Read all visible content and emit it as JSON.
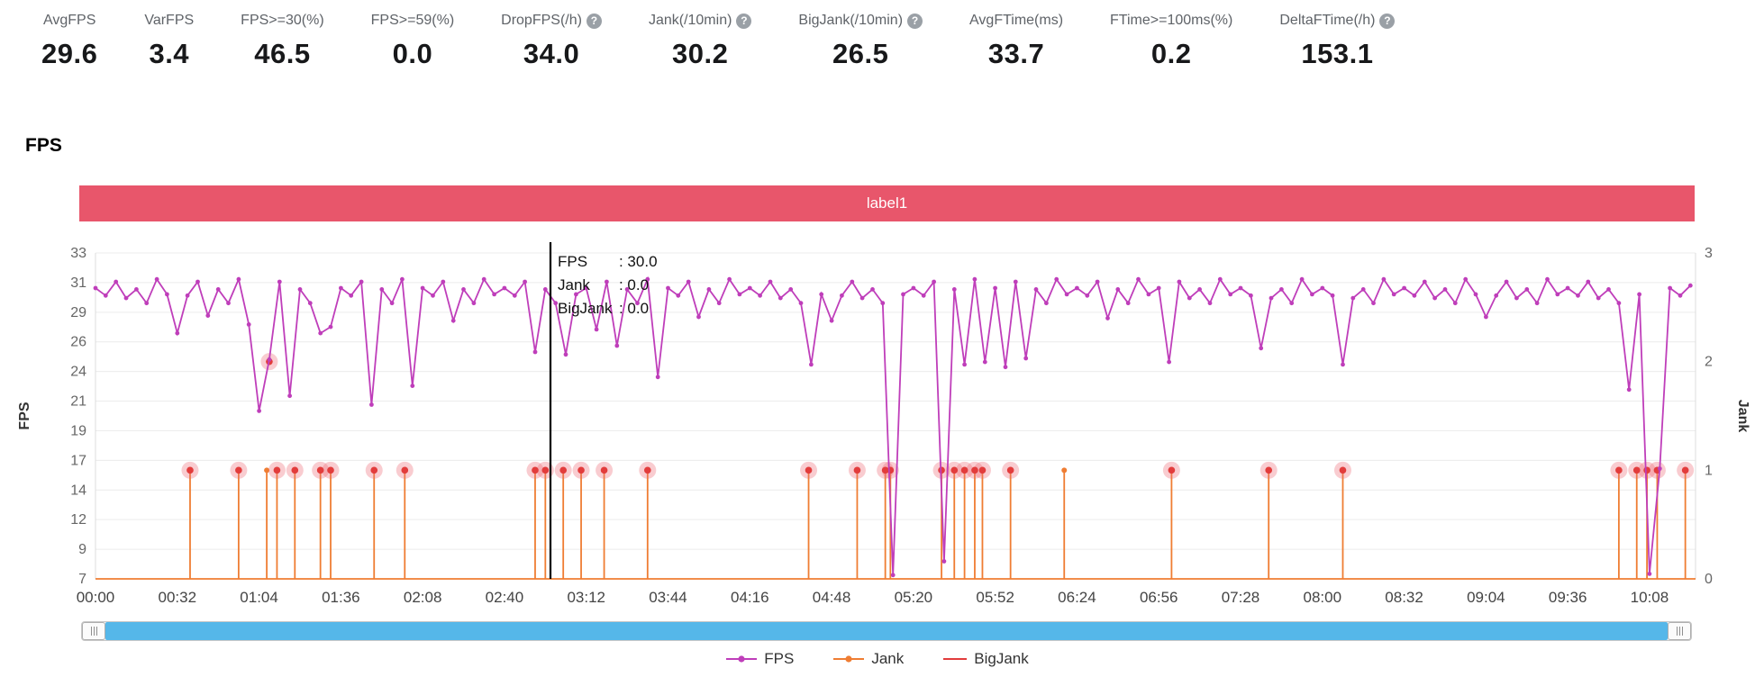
{
  "help_icon_glyph": "?",
  "stats": [
    {
      "label": "AvgFPS",
      "value": "29.6",
      "help": false
    },
    {
      "label": "VarFPS",
      "value": "3.4",
      "help": false
    },
    {
      "label": "FPS>=30(%)",
      "value": "46.5",
      "help": false
    },
    {
      "label": "FPS>=59(%)",
      "value": "0.0",
      "help": false
    },
    {
      "label": "DropFPS(/h)",
      "value": "34.0",
      "help": true
    },
    {
      "label": "Jank(/10min)",
      "value": "30.2",
      "help": true
    },
    {
      "label": "BigJank(/10min)",
      "value": "26.5",
      "help": true
    },
    {
      "label": "AvgFTime(ms)",
      "value": "33.7",
      "help": false
    },
    {
      "label": "FTime>=100ms(%)",
      "value": "0.2",
      "help": false
    },
    {
      "label": "DeltaFTime(/h)",
      "value": "153.1",
      "help": true
    }
  ],
  "section_title": "FPS",
  "banner": {
    "label": "label1",
    "color": "#e8566b"
  },
  "chart_data": {
    "type": "line",
    "title": "label1",
    "left_axis": {
      "label": "FPS",
      "min": 7,
      "max": 33,
      "ticks": [
        "33",
        "31",
        "29",
        "26",
        "24",
        "21",
        "19",
        "17",
        "14",
        "12",
        "9",
        "7"
      ]
    },
    "right_axis": {
      "label": "Jank",
      "min": 0,
      "max": 3,
      "ticks": [
        "3",
        "2",
        "1",
        "0"
      ]
    },
    "x_ticks": [
      "00:00",
      "00:32",
      "01:04",
      "01:36",
      "02:08",
      "02:40",
      "03:12",
      "03:44",
      "04:16",
      "04:48",
      "05:20",
      "05:52",
      "06:24",
      "06:56",
      "07:28",
      "08:00",
      "08:32",
      "09:04",
      "09:36",
      "10:08"
    ],
    "x_tick_interval_seconds": 32,
    "x_max_seconds": 626,
    "grid": true,
    "legend_position": "bottom",
    "series": [
      {
        "name": "FPS",
        "color": "#bf3eba",
        "axis": "left",
        "x_start": 0,
        "x_step": 4,
        "values": [
          30.2,
          29.6,
          30.7,
          29.4,
          30.1,
          29.0,
          30.9,
          29.7,
          26.6,
          29.6,
          30.7,
          28.0,
          30.1,
          29.0,
          30.9,
          27.3,
          20.4,
          24.5,
          30.7,
          21.6,
          30.1,
          29.0,
          26.6,
          27.1,
          30.2,
          29.6,
          30.7,
          20.9,
          30.1,
          29.0,
          30.9,
          22.4,
          30.2,
          29.6,
          30.7,
          27.6,
          30.1,
          29.0,
          30.9,
          29.7,
          30.2,
          29.6,
          30.7,
          25.1,
          30.1,
          29.0,
          24.9,
          29.7,
          30.2,
          26.9,
          30.7,
          25.6,
          30.1,
          29.0,
          30.9,
          23.1,
          30.2,
          29.6,
          30.7,
          27.9,
          30.1,
          29.0,
          30.9,
          29.7,
          30.2,
          29.6,
          30.7,
          29.4,
          30.1,
          29.0,
          24.1,
          29.7,
          27.6,
          29.6,
          30.7,
          29.4,
          30.1,
          29.0,
          7.3,
          29.7,
          30.2,
          29.6,
          30.7,
          8.4,
          30.1,
          24.1,
          30.9,
          24.3,
          30.2,
          23.9,
          30.7,
          24.6,
          30.1,
          29.0,
          30.9,
          29.7,
          30.2,
          29.6,
          30.7,
          27.8,
          30.1,
          29.0,
          30.9,
          29.7,
          30.2,
          24.3,
          30.7,
          29.4,
          30.1,
          29.0,
          30.9,
          29.7,
          30.2,
          29.6,
          25.4,
          29.4,
          30.1,
          29.0,
          30.9,
          29.7,
          30.2,
          29.6,
          24.1,
          29.4,
          30.1,
          29.0,
          30.9,
          29.7,
          30.2,
          29.6,
          30.7,
          29.4,
          30.1,
          29.0,
          30.9,
          29.7,
          27.9,
          29.6,
          30.7,
          29.4,
          30.1,
          29.0,
          30.9,
          29.7,
          30.2,
          29.6,
          30.7,
          29.4,
          30.1,
          29.0,
          22.1,
          29.7,
          7.4,
          15.8,
          30.2,
          29.6,
          30.4
        ]
      },
      {
        "name": "Jank",
        "color": "#ef7d33",
        "axis": "right",
        "baseline": 0,
        "points": [
          [
            37,
            1
          ],
          [
            56,
            1
          ],
          [
            67,
            1
          ],
          [
            71,
            1
          ],
          [
            78,
            1
          ],
          [
            88,
            1
          ],
          [
            92,
            1
          ],
          [
            109,
            1
          ],
          [
            121,
            1
          ],
          [
            172,
            1
          ],
          [
            176,
            1
          ],
          [
            183,
            1
          ],
          [
            190,
            1
          ],
          [
            199,
            1
          ],
          [
            216,
            1
          ],
          [
            279,
            1
          ],
          [
            298,
            1
          ],
          [
            309,
            1
          ],
          [
            311,
            1
          ],
          [
            331,
            1
          ],
          [
            336,
            1
          ],
          [
            340,
            1
          ],
          [
            344,
            1
          ],
          [
            347,
            1
          ],
          [
            358,
            1
          ],
          [
            379,
            1
          ],
          [
            421,
            1
          ],
          [
            459,
            1
          ],
          [
            488,
            1
          ],
          [
            596,
            1
          ],
          [
            603,
            1
          ],
          [
            607,
            1
          ],
          [
            611,
            1
          ],
          [
            622,
            1
          ]
        ]
      },
      {
        "name": "BigJank",
        "color": "#e23c3c",
        "halo_color": "rgba(238,110,120,0.35)",
        "axis": "right",
        "points": [
          [
            37,
            1
          ],
          [
            56,
            1
          ],
          [
            68,
            2
          ],
          [
            71,
            1
          ],
          [
            78,
            1
          ],
          [
            88,
            1
          ],
          [
            92,
            1
          ],
          [
            109,
            1
          ],
          [
            121,
            1
          ],
          [
            172,
            1
          ],
          [
            176,
            1
          ],
          [
            183,
            1
          ],
          [
            190,
            1
          ],
          [
            199,
            1
          ],
          [
            216,
            1
          ],
          [
            279,
            1
          ],
          [
            298,
            1
          ],
          [
            309,
            1
          ],
          [
            311,
            1
          ],
          [
            331,
            1
          ],
          [
            336,
            1
          ],
          [
            340,
            1
          ],
          [
            344,
            1
          ],
          [
            347,
            1
          ],
          [
            358,
            1
          ],
          [
            421,
            1
          ],
          [
            459,
            1
          ],
          [
            488,
            1
          ],
          [
            596,
            1
          ],
          [
            603,
            1
          ],
          [
            607,
            1
          ],
          [
            611,
            1
          ],
          [
            622,
            1
          ]
        ]
      }
    ],
    "cursor": {
      "t": 178,
      "tooltip": [
        {
          "name": "FPS",
          "value": "30.0"
        },
        {
          "name": "Jank",
          "value": "0.0"
        },
        {
          "name": "BigJank",
          "value": "0.0"
        }
      ]
    }
  },
  "legend": [
    {
      "label": "FPS",
      "color": "#bf3eba",
      "marker": "line-dot"
    },
    {
      "label": "Jank",
      "color": "#ef7d33",
      "marker": "line-dot"
    },
    {
      "label": "BigJank",
      "color": "#e23c3c",
      "marker": "line"
    }
  ],
  "scrollbar": {
    "color": "#55b7e9"
  }
}
